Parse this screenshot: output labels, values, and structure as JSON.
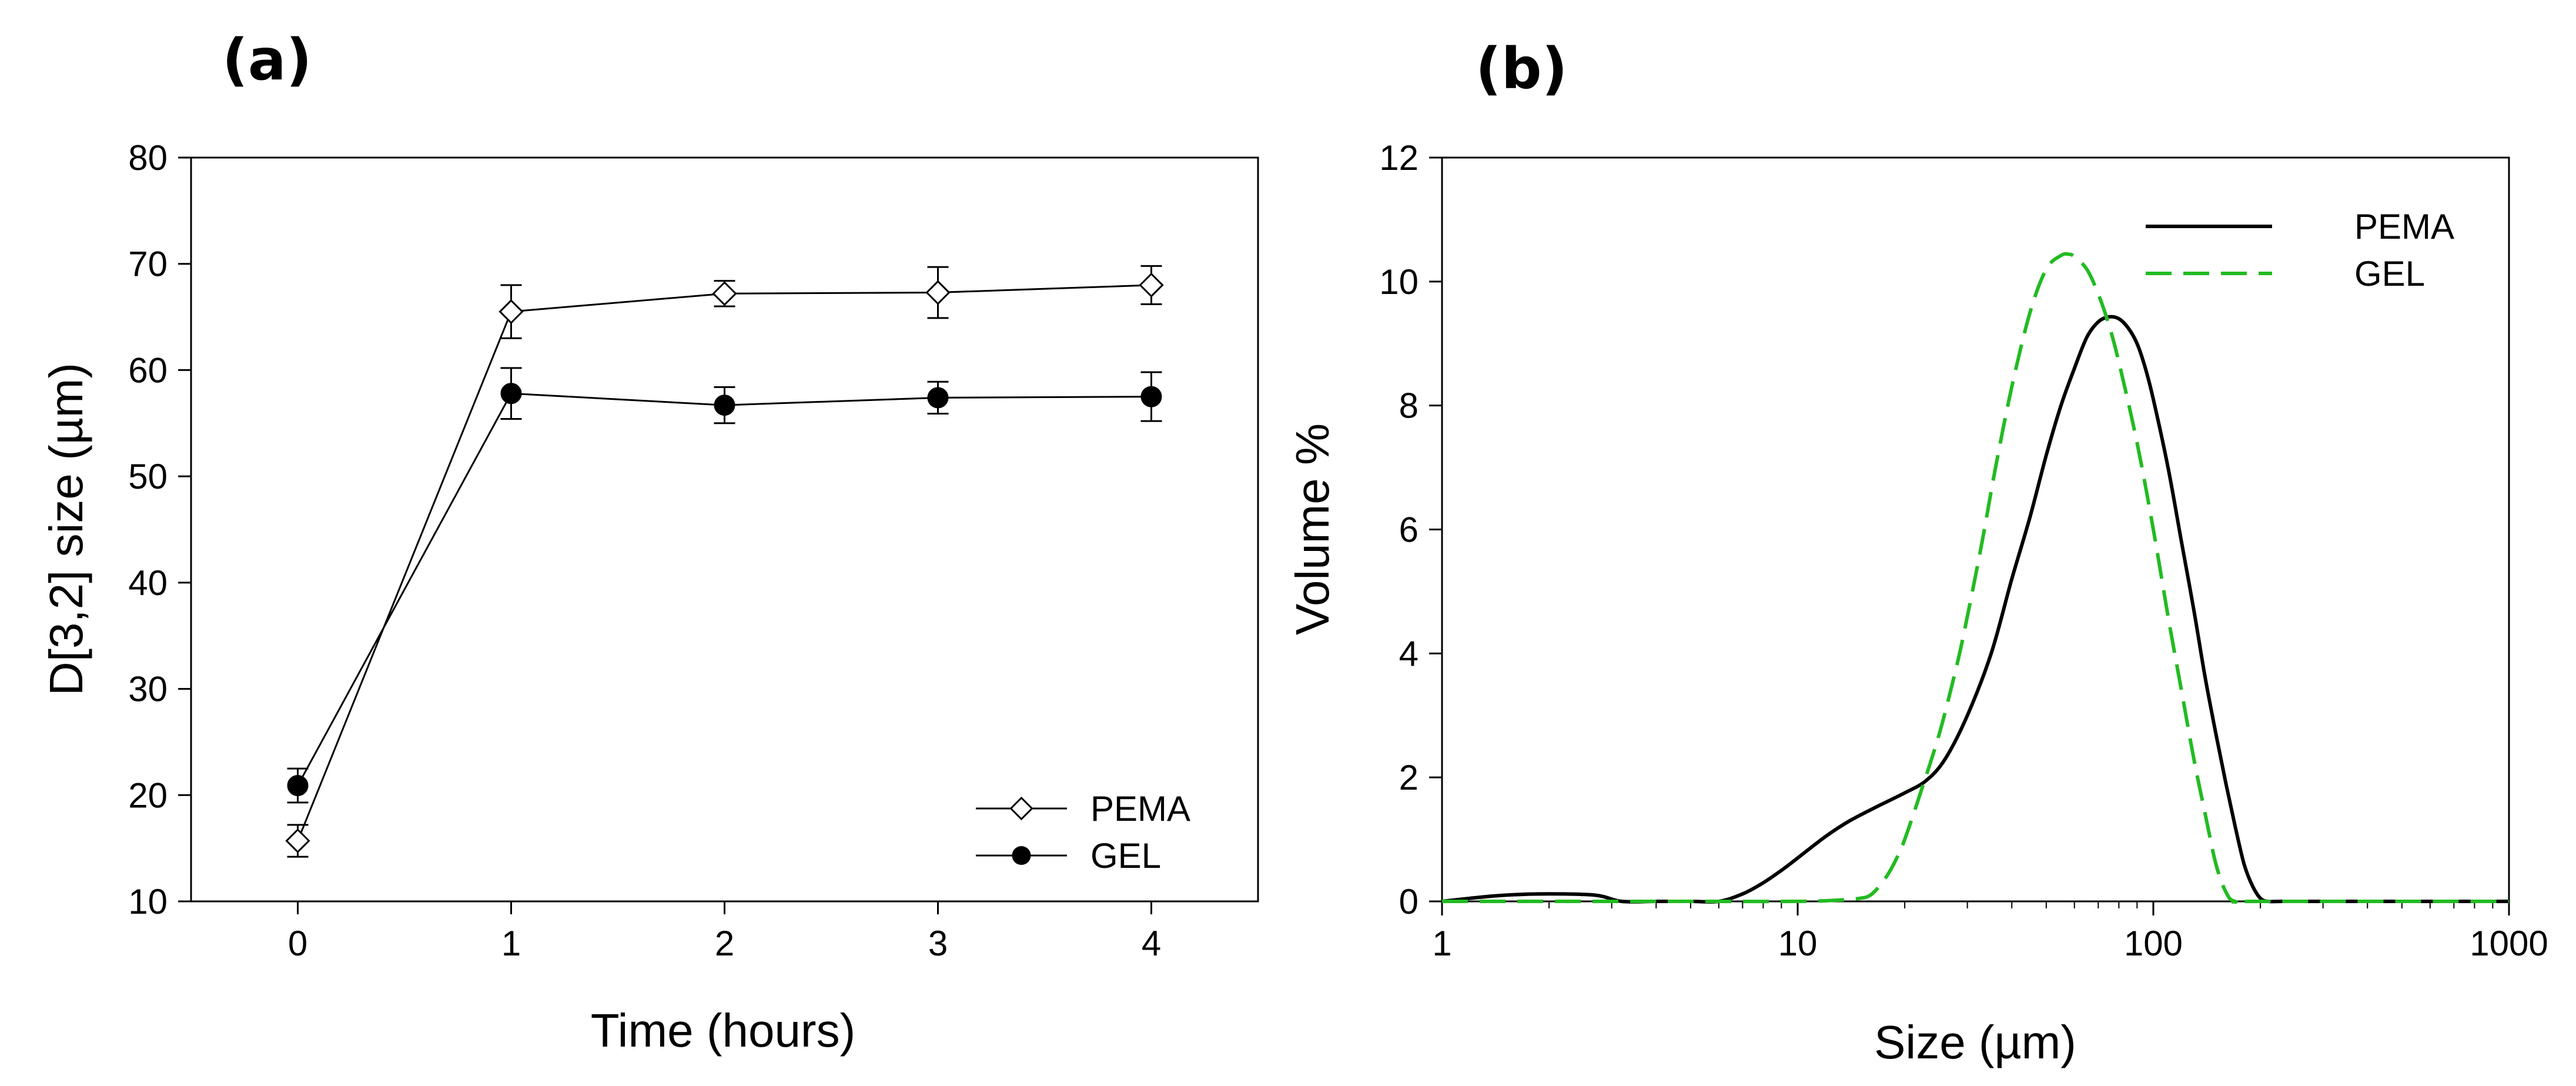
{
  "chart_data": [
    {
      "panel_label": "(a)",
      "type": "line",
      "title": "",
      "xlabel": "Time (hours)",
      "ylabel": "D[3,2] size (µm)",
      "xlim": [
        -0.5,
        4.5
      ],
      "ylim": [
        10,
        80
      ],
      "xticks": [
        0,
        1,
        2,
        3,
        4
      ],
      "yticks": [
        10,
        20,
        30,
        40,
        50,
        60,
        70,
        80
      ],
      "grid": false,
      "legend_position": "bottom-right",
      "series": [
        {
          "name": "PEMA",
          "marker": "open-diamond",
          "color": "#000000",
          "x": [
            0,
            1,
            2,
            3,
            4
          ],
          "y": [
            15.7,
            65.5,
            67.2,
            67.3,
            68.0
          ],
          "err": [
            1.5,
            2.5,
            1.2,
            2.4,
            1.8
          ]
        },
        {
          "name": "GEL",
          "marker": "filled-circle",
          "color": "#000000",
          "x": [
            0,
            1,
            2,
            3,
            4
          ],
          "y": [
            20.9,
            57.8,
            56.7,
            57.4,
            57.5
          ],
          "err": [
            1.6,
            2.4,
            1.7,
            1.5,
            2.3
          ]
        }
      ]
    },
    {
      "panel_label": "(b)",
      "type": "line",
      "title": "",
      "xlabel": "Size (µm)",
      "ylabel": "Volume %",
      "xscale": "log",
      "xlim": [
        1,
        1000
      ],
      "ylim": [
        0,
        12
      ],
      "xticks": [
        1,
        10,
        100,
        1000
      ],
      "yticks": [
        0,
        2,
        4,
        6,
        8,
        10,
        12
      ],
      "grid": false,
      "legend_position": "top-right",
      "series": [
        {
          "name": "PEMA",
          "style": "solid",
          "color": "#000000",
          "x": [
            1,
            1.2,
            1.5,
            2,
            2.7,
            3.2,
            4,
            5,
            6,
            7,
            8,
            9,
            10,
            12,
            14,
            17,
            20,
            23,
            26,
            30,
            35,
            40,
            45,
            50,
            55,
            60,
            65,
            70,
            75,
            80,
            85,
            90,
            95,
            100,
            110,
            120,
            130,
            140,
            150,
            160,
            170,
            180,
            190,
            200,
            210,
            230,
            300,
            500,
            1000
          ],
          "y": [
            0,
            0.05,
            0.1,
            0.12,
            0.1,
            0,
            0,
            0,
            0,
            0.12,
            0.3,
            0.5,
            0.7,
            1.05,
            1.3,
            1.55,
            1.75,
            1.95,
            2.3,
            3.0,
            4.0,
            5.2,
            6.2,
            7.2,
            8.0,
            8.6,
            9.1,
            9.35,
            9.43,
            9.4,
            9.25,
            9.0,
            8.6,
            8.1,
            7.0,
            5.8,
            4.7,
            3.6,
            2.7,
            1.9,
            1.2,
            0.6,
            0.25,
            0.05,
            0,
            0,
            0,
            0,
            0
          ]
        },
        {
          "name": "GEL",
          "style": "dashed",
          "color": "#22bb22",
          "x": [
            1,
            2,
            5,
            10,
            13,
            15,
            16,
            17,
            18,
            19,
            20,
            22,
            25,
            28,
            30,
            33,
            36,
            40,
            45,
            50,
            55,
            58,
            60,
            65,
            70,
            75,
            80,
            90,
            100,
            110,
            120,
            130,
            140,
            150,
            160,
            170,
            200,
            1000
          ],
          "y": [
            0,
            0,
            0,
            0,
            0.02,
            0.05,
            0.1,
            0.25,
            0.45,
            0.7,
            1.0,
            1.7,
            2.7,
            3.8,
            4.6,
            5.8,
            7.0,
            8.3,
            9.5,
            10.2,
            10.42,
            10.44,
            10.4,
            10.2,
            9.8,
            9.3,
            8.7,
            7.4,
            6.0,
            4.6,
            3.4,
            2.3,
            1.4,
            0.6,
            0.15,
            0,
            0,
            0
          ]
        }
      ]
    }
  ]
}
